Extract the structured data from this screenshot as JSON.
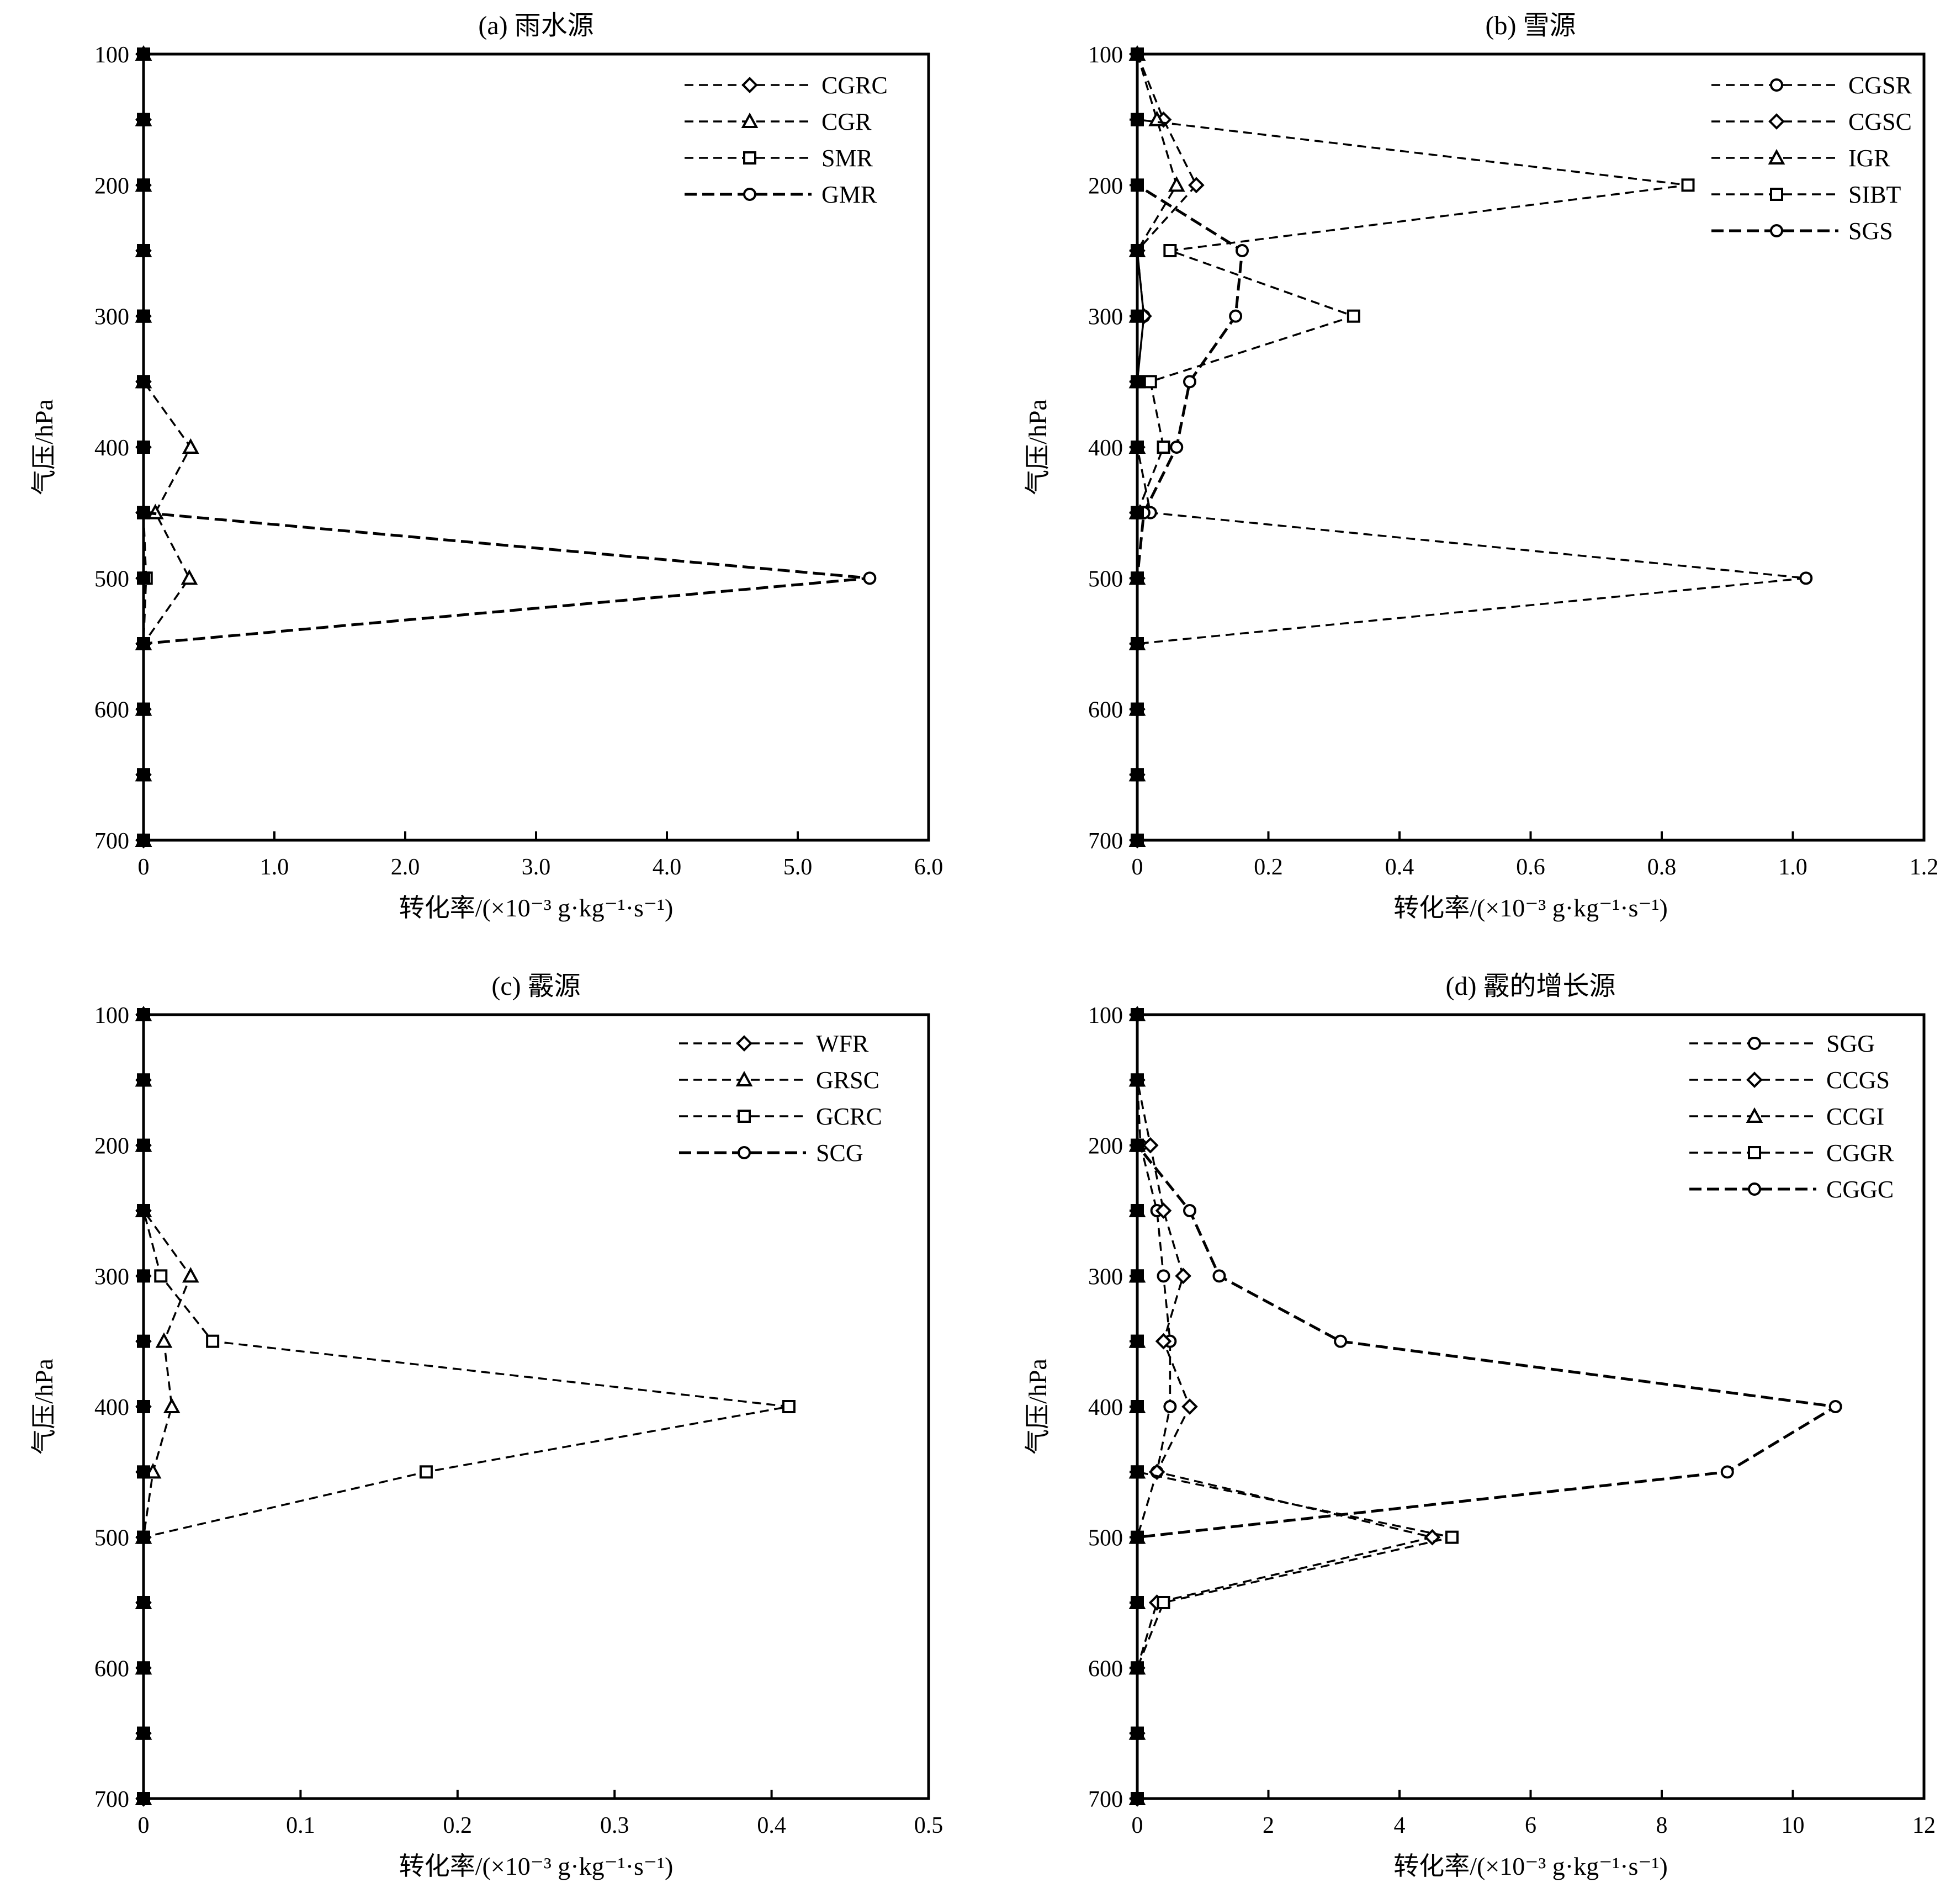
{
  "figure": {
    "background": "#ffffff",
    "line_color": "#000000"
  },
  "chart_data": [
    {
      "type": "line",
      "title": "(a) 雨水源",
      "xlabel": "转化率/(×10⁻³ g·kg⁻¹·s⁻¹)",
      "ylabel": "气压/hPa",
      "xlim": [
        0,
        6.0
      ],
      "ylim": [
        700,
        100
      ],
      "y_inverted": true,
      "grid": false,
      "legend_position": "top-right",
      "x_ticks": [
        0,
        1.0,
        2.0,
        3.0,
        4.0,
        5.0,
        6.0
      ],
      "x_tick_labels": [
        "0",
        "1.0",
        "2.0",
        "3.0",
        "4.0",
        "5.0",
        "6.0"
      ],
      "y_ticks": [
        100,
        200,
        300,
        400,
        500,
        600,
        700
      ],
      "y_tick_labels": [
        "100",
        "200",
        "300",
        "400",
        "500",
        "600",
        "700"
      ],
      "pressure_levels": [
        100,
        150,
        200,
        250,
        300,
        350,
        400,
        450,
        500,
        550,
        600,
        650,
        700
      ],
      "series": [
        {
          "name": "CGRC",
          "marker": "diamond",
          "values": [
            0,
            0,
            0,
            0,
            0,
            0,
            0,
            0,
            0,
            0,
            0,
            0,
            0
          ]
        },
        {
          "name": "CGR",
          "marker": "triangle",
          "values": [
            0,
            0,
            0,
            0,
            0,
            0,
            0.36,
            0.09,
            0.35,
            0,
            0,
            0,
            0
          ]
        },
        {
          "name": "SMR",
          "marker": "square",
          "values": [
            0,
            0,
            0,
            0,
            0,
            0,
            0,
            0,
            0.02,
            0,
            0,
            0,
            0
          ]
        },
        {
          "name": "GMR",
          "marker": "circle",
          "bold": true,
          "values": [
            0,
            0,
            0,
            0,
            0,
            0,
            0,
            0,
            5.55,
            0,
            0,
            0,
            0
          ]
        }
      ]
    },
    {
      "type": "line",
      "title": "(b) 雪源",
      "xlabel": "转化率/(×10⁻³ g·kg⁻¹·s⁻¹)",
      "ylabel": "气压/hPa",
      "xlim": [
        0,
        1.2
      ],
      "ylim": [
        700,
        100
      ],
      "y_inverted": true,
      "grid": false,
      "legend_position": "top-right",
      "x_ticks": [
        0,
        0.2,
        0.4,
        0.6,
        0.8,
        1.0,
        1.2
      ],
      "x_tick_labels": [
        "0",
        "0.2",
        "0.4",
        "0.6",
        "0.8",
        "1.0",
        "1.2"
      ],
      "y_ticks": [
        100,
        200,
        300,
        400,
        500,
        600,
        700
      ],
      "y_tick_labels": [
        "100",
        "200",
        "300",
        "400",
        "500",
        "600",
        "700"
      ],
      "pressure_levels": [
        100,
        150,
        200,
        250,
        300,
        350,
        400,
        450,
        500,
        550,
        600,
        650,
        700
      ],
      "series": [
        {
          "name": "CGSR",
          "marker": "circle",
          "values": [
            0,
            0,
            0,
            0,
            0.01,
            0,
            0,
            0.02,
            1.02,
            0,
            0,
            0,
            0
          ]
        },
        {
          "name": "CGSC",
          "marker": "diamond",
          "values": [
            0,
            0.04,
            0.09,
            0,
            0.01,
            0,
            0,
            0,
            0,
            0,
            0,
            0,
            0
          ]
        },
        {
          "name": "IGR",
          "marker": "triangle",
          "values": [
            0,
            0.03,
            0.06,
            0,
            0,
            0,
            0,
            0,
            0,
            0,
            0,
            0,
            0
          ]
        },
        {
          "name": "SIBT",
          "marker": "square",
          "values": [
            0,
            0,
            0.84,
            0.05,
            0.33,
            0.02,
            0.04,
            0,
            0,
            0,
            0,
            0,
            0
          ]
        },
        {
          "name": "SGS",
          "marker": "circle",
          "bold": true,
          "values": [
            0,
            0,
            0,
            0.16,
            0.15,
            0.08,
            0.06,
            0.01,
            0,
            0,
            0,
            0,
            0
          ]
        }
      ]
    },
    {
      "type": "line",
      "title": "(c) 霰源",
      "xlabel": "转化率/(×10⁻³ g·kg⁻¹·s⁻¹)",
      "ylabel": "气压/hPa",
      "xlim": [
        0,
        0.5
      ],
      "ylim": [
        700,
        100
      ],
      "y_inverted": true,
      "grid": false,
      "legend_position": "top-right",
      "x_ticks": [
        0,
        0.1,
        0.2,
        0.3,
        0.4,
        0.5
      ],
      "x_tick_labels": [
        "0",
        "0.1",
        "0.2",
        "0.3",
        "0.4",
        "0.5"
      ],
      "y_ticks": [
        100,
        200,
        300,
        400,
        500,
        600,
        700
      ],
      "y_tick_labels": [
        "100",
        "200",
        "300",
        "400",
        "500",
        "600",
        "700"
      ],
      "pressure_levels": [
        100,
        150,
        200,
        250,
        300,
        350,
        400,
        450,
        500,
        550,
        600,
        650,
        700
      ],
      "series": [
        {
          "name": "WFR",
          "marker": "diamond",
          "values": [
            0,
            0,
            0,
            0,
            0,
            0,
            0,
            0,
            0,
            0,
            0,
            0,
            0
          ]
        },
        {
          "name": "GRSC",
          "marker": "triangle",
          "values": [
            0,
            0,
            0,
            0,
            0.03,
            0.013,
            0.018,
            0.006,
            0,
            0,
            0,
            0,
            0
          ]
        },
        {
          "name": "GCRC",
          "marker": "square",
          "values": [
            0,
            0,
            0,
            0,
            0.011,
            0.044,
            0.411,
            0.18,
            0,
            0,
            0,
            0,
            0
          ]
        },
        {
          "name": "SCG",
          "marker": "circle",
          "bold": true,
          "values": [
            0,
            0,
            0,
            0,
            0,
            0,
            0,
            0,
            0,
            0,
            0,
            0,
            0
          ]
        }
      ]
    },
    {
      "type": "line",
      "title": "(d) 霰的增长源",
      "xlabel": "转化率/(×10⁻³ g·kg⁻¹·s⁻¹)",
      "ylabel": "气压/hPa",
      "xlim": [
        0,
        12
      ],
      "ylim": [
        700,
        100
      ],
      "y_inverted": true,
      "grid": false,
      "legend_position": "top-right",
      "x_ticks": [
        0,
        2,
        4,
        6,
        8,
        10,
        12
      ],
      "x_tick_labels": [
        "0",
        "2",
        "4",
        "6",
        "8",
        "10",
        "12"
      ],
      "y_ticks": [
        100,
        200,
        300,
        400,
        500,
        600,
        700
      ],
      "y_tick_labels": [
        "100",
        "200",
        "300",
        "400",
        "500",
        "600",
        "700"
      ],
      "pressure_levels": [
        100,
        150,
        200,
        250,
        300,
        350,
        400,
        450,
        500,
        550,
        600,
        650,
        700
      ],
      "series": [
        {
          "name": "SGG",
          "marker": "circle",
          "values": [
            0,
            0,
            0.05,
            0.3,
            0.4,
            0.5,
            0.5,
            0.3,
            0,
            0,
            0,
            0,
            0
          ]
        },
        {
          "name": "CCGS",
          "marker": "diamond",
          "values": [
            0,
            0,
            0.2,
            0.4,
            0.7,
            0.4,
            0.8,
            0.3,
            4.5,
            0.3,
            0,
            0,
            0
          ]
        },
        {
          "name": "CCGI",
          "marker": "triangle",
          "values": [
            0,
            0,
            0,
            0,
            0,
            0,
            0,
            0,
            0,
            0,
            0,
            0,
            0
          ]
        },
        {
          "name": "CGGR",
          "marker": "square",
          "values": [
            0,
            0,
            0,
            0,
            0,
            0,
            0,
            0,
            4.8,
            0.4,
            0,
            0,
            0
          ]
        },
        {
          "name": "CGGC",
          "marker": "circle",
          "bold": true,
          "values": [
            0,
            0,
            0,
            0.8,
            1.25,
            3.1,
            10.65,
            9.0,
            0,
            0,
            0,
            0,
            0
          ]
        }
      ]
    }
  ]
}
